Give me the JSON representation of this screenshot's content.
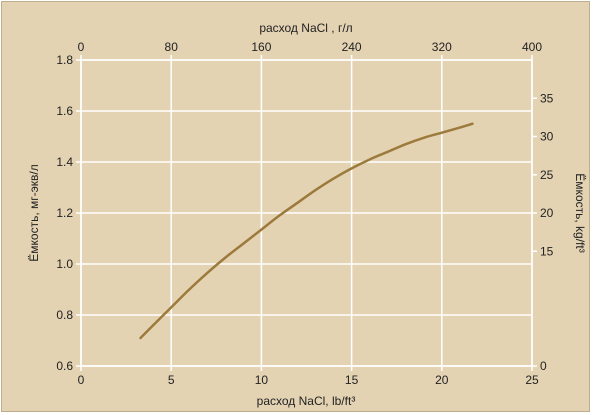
{
  "chart_data": {
    "type": "line",
    "title": "",
    "x_bottom": {
      "label": "расход NaCl, lb/ft³",
      "range": [
        0,
        25
      ],
      "ticks": [
        "0",
        "5",
        "10",
        "15",
        "20",
        "25"
      ]
    },
    "x_top": {
      "label": "расход NaCl , г/л",
      "range": [
        0,
        400
      ],
      "ticks": [
        "0",
        "80",
        "160",
        "240",
        "320",
        "400"
      ]
    },
    "y_left": {
      "label": "Ёмкость, мг-экв/л",
      "range": [
        0.6,
        1.8
      ],
      "ticks": [
        "0.6",
        "0.8",
        "1.0",
        "1.2",
        "1.4",
        "1.6",
        "1.8"
      ]
    },
    "y_right": {
      "label": "Ёмкость, kg/ft³",
      "range": [
        0,
        40
      ],
      "ticks": [
        "0",
        "15",
        "20",
        "25",
        "30",
        "35"
      ]
    },
    "grid": true,
    "series": [
      {
        "color": "#9c7a3c",
        "x": [
          3.3,
          4,
          5,
          6,
          7,
          8,
          9,
          10,
          11,
          12,
          13,
          14,
          15,
          16,
          17,
          18,
          19,
          20,
          21,
          21.7
        ],
        "y": [
          0.71,
          0.76,
          0.83,
          0.9,
          0.965,
          1.025,
          1.08,
          1.135,
          1.19,
          1.24,
          1.29,
          1.335,
          1.375,
          1.41,
          1.44,
          1.47,
          1.495,
          1.515,
          1.535,
          1.55
        ]
      }
    ]
  }
}
